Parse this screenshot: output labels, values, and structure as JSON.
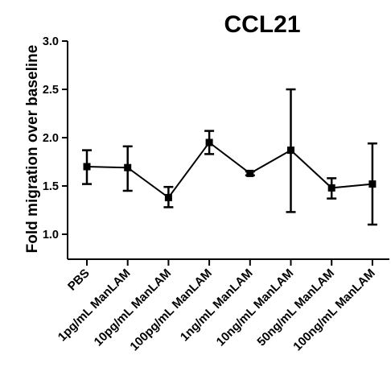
{
  "chart_data": {
    "type": "line",
    "title": "CCL21",
    "xlabel": "",
    "ylabel": "Fold migration over baseline",
    "ylim": [
      0.75,
      3.0
    ],
    "yticks": [
      1.0,
      1.5,
      2.0,
      2.5,
      3.0
    ],
    "ytick_labels": [
      "1.0",
      "1.5",
      "2.0",
      "2.5",
      "3.0"
    ],
    "categories": [
      "PBS",
      "1pg/mL ManLAM",
      "10pg/mL ManLAM",
      "100pg/mL ManLAM",
      "1ng/mL ManLAM",
      "10ng/mL ManLAM",
      "50ng/mL ManLAM",
      "100ng/mL ManLAM"
    ],
    "series": [
      {
        "values": [
          1.7,
          1.69,
          1.38,
          1.95,
          1.63,
          1.87,
          1.48,
          1.52
        ],
        "error_low": [
          1.52,
          1.45,
          1.28,
          1.83,
          1.61,
          1.23,
          1.37,
          1.1
        ],
        "error_high": [
          1.87,
          1.91,
          1.49,
          2.07,
          1.65,
          2.5,
          1.58,
          1.94
        ],
        "color": "#000000"
      }
    ],
    "grid": false,
    "legend": "none"
  }
}
